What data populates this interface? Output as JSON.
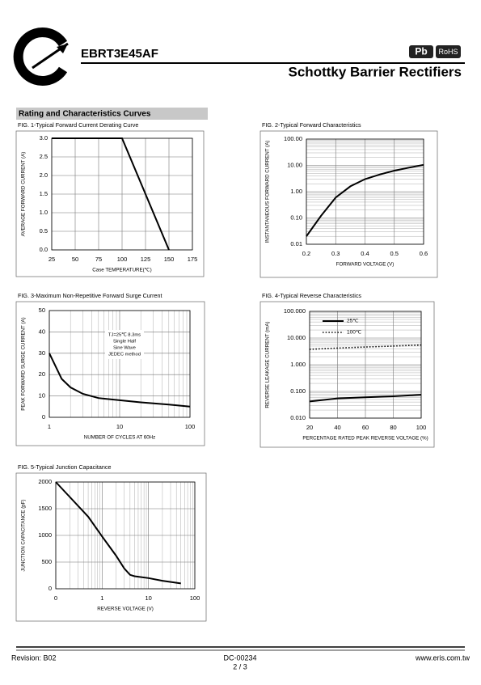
{
  "header": {
    "part_number": "EBRT3E45AF",
    "title": "Schottky Barrier Rectifiers",
    "badges": [
      "Pb",
      "RoHS"
    ]
  },
  "section_title": "Rating and Characteristics Curves",
  "chart_data": [
    {
      "type": "line",
      "title": "FIG. 1-Typical Forward Current Derating Curve",
      "xlabel": "Case TEMPERATURE(℃)",
      "ylabel": "AVERAGE FORWARD CURRENT (A)",
      "xlim": [
        25,
        175
      ],
      "xticks": [
        25,
        50,
        75,
        100,
        125,
        150,
        175
      ],
      "ylim": [
        0,
        3
      ],
      "yticks": [
        {
          "value": 0,
          "label": "0.0"
        },
        {
          "value": 0.5,
          "label": "0.5"
        },
        {
          "value": 1,
          "label": "1.0"
        },
        {
          "value": 1.5,
          "label": "1.5"
        },
        {
          "value": 2,
          "label": "2.0"
        },
        {
          "value": 2.5,
          "label": "2.5"
        },
        {
          "value": 3,
          "label": "3.0"
        }
      ],
      "grid": true,
      "series": [
        {
          "color": "#000000",
          "style": "solid",
          "x": [
            25,
            100,
            150
          ],
          "values": [
            3,
            3,
            0
          ]
        }
      ]
    },
    {
      "type": "line",
      "title": "FIG. 2-Typical Forward Characteristics",
      "xlabel": "FORWARD VOLTAGE (V)",
      "ylabel": "INSTANTANEOUS FORWARD CURRENT (A)",
      "xlim": [
        0.2,
        0.6
      ],
      "xticks": [
        0.2,
        0.3,
        0.4,
        0.5,
        0.6
      ],
      "ylim": [
        0.01,
        100
      ],
      "ylog": true,
      "yticks": [
        0.01,
        {
          "value": 0.1,
          "label": "0.10"
        },
        {
          "value": 1,
          "label": "1.00"
        },
        {
          "value": 10,
          "label": "10.00"
        },
        {
          "value": 100,
          "label": "100.00"
        }
      ],
      "grid": true,
      "series": [
        {
          "color": "#000000",
          "style": "solid",
          "x": [
            0.2,
            0.25,
            0.3,
            0.35,
            0.4,
            0.45,
            0.5,
            0.55,
            0.6
          ],
          "values": [
            0.02,
            0.12,
            0.6,
            1.6,
            3,
            4.5,
            6.3,
            8.2,
            10.5
          ]
        }
      ]
    },
    {
      "type": "line",
      "title": "FIG. 3-Maximum Non-Repetitive Forward Surge Current",
      "xlabel": "NUMBER OF CYCLES AT 60Hz",
      "ylabel": "PEAK FORWARD SURGE CURRENT (A)",
      "xlim": [
        1,
        100
      ],
      "xlog": true,
      "xticks": [
        1,
        10,
        100
      ],
      "ylim": [
        0,
        50
      ],
      "yticks": [
        0,
        10,
        20,
        30,
        40,
        50
      ],
      "annotation": [
        "TJ=25℃ 8.3ms",
        "Single Half",
        "Sine Wave",
        "JEDEC method"
      ],
      "grid": true,
      "series": [
        {
          "color": "#000000",
          "style": "solid",
          "x": [
            1,
            1.5,
            2,
            3,
            5,
            10,
            20,
            50,
            100
          ],
          "values": [
            30,
            18,
            14,
            11,
            9,
            8,
            7,
            6,
            5
          ]
        }
      ]
    },
    {
      "type": "line",
      "title": "FIG. 4-Typical Reverse Characteristics",
      "xlabel": "PERCENTAGE RATED PEAK REVERSE VOLTAGE (%)",
      "ylabel": "REVERSE LEAKAGE CURRENT  (mA)",
      "xlim": [
        20,
        100
      ],
      "xticks": [
        20,
        40,
        60,
        80,
        100
      ],
      "ylim": [
        0.01,
        100
      ],
      "ylog": true,
      "yticks": [
        {
          "value": 0.01,
          "label": "0.010"
        },
        {
          "value": 0.1,
          "label": "0.100"
        },
        {
          "value": 1,
          "label": "1.000"
        },
        {
          "value": 10,
          "label": "10.000"
        },
        {
          "value": 100,
          "label": "100.000"
        }
      ],
      "grid": true,
      "legend": "upper left",
      "series": [
        {
          "name": "25℃",
          "color": "#000000",
          "style": "solid",
          "x": [
            20,
            40,
            60,
            80,
            100
          ],
          "values": [
            0.042,
            0.055,
            0.06,
            0.066,
            0.075
          ]
        },
        {
          "name": "100℃",
          "color": "#000000",
          "style": "dotted",
          "x": [
            20,
            40,
            60,
            80,
            100
          ],
          "values": [
            3.8,
            4.2,
            4.6,
            5,
            5.5
          ]
        }
      ]
    },
    {
      "type": "line",
      "title": "FIG. 5-Typical Junction Capacitance",
      "xlabel": "REVERSE VOLTAGE (V)",
      "ylabel": "JUNCTION CAPACITANCE (pF)",
      "xlim": [
        0.1,
        100
      ],
      "xlog": true,
      "xticks": [
        {
          "value": 0.1,
          "label": "0"
        },
        1,
        10,
        100
      ],
      "ylim": [
        0,
        2000
      ],
      "yticks": [
        0,
        500,
        1000,
        1500,
        2000
      ],
      "grid": true,
      "series": [
        {
          "color": "#000000",
          "style": "solid",
          "x": [
            0.1,
            0.2,
            0.5,
            1,
            2,
            3,
            4,
            5,
            10,
            20,
            50
          ],
          "values": [
            2000,
            1720,
            1350,
            980,
            620,
            380,
            260,
            235,
            200,
            150,
            100
          ]
        }
      ]
    }
  ],
  "footer": {
    "revision": "Revision: B02",
    "document": "DC-00234",
    "page": "2 / 3",
    "website": "www.eris.com.tw"
  }
}
